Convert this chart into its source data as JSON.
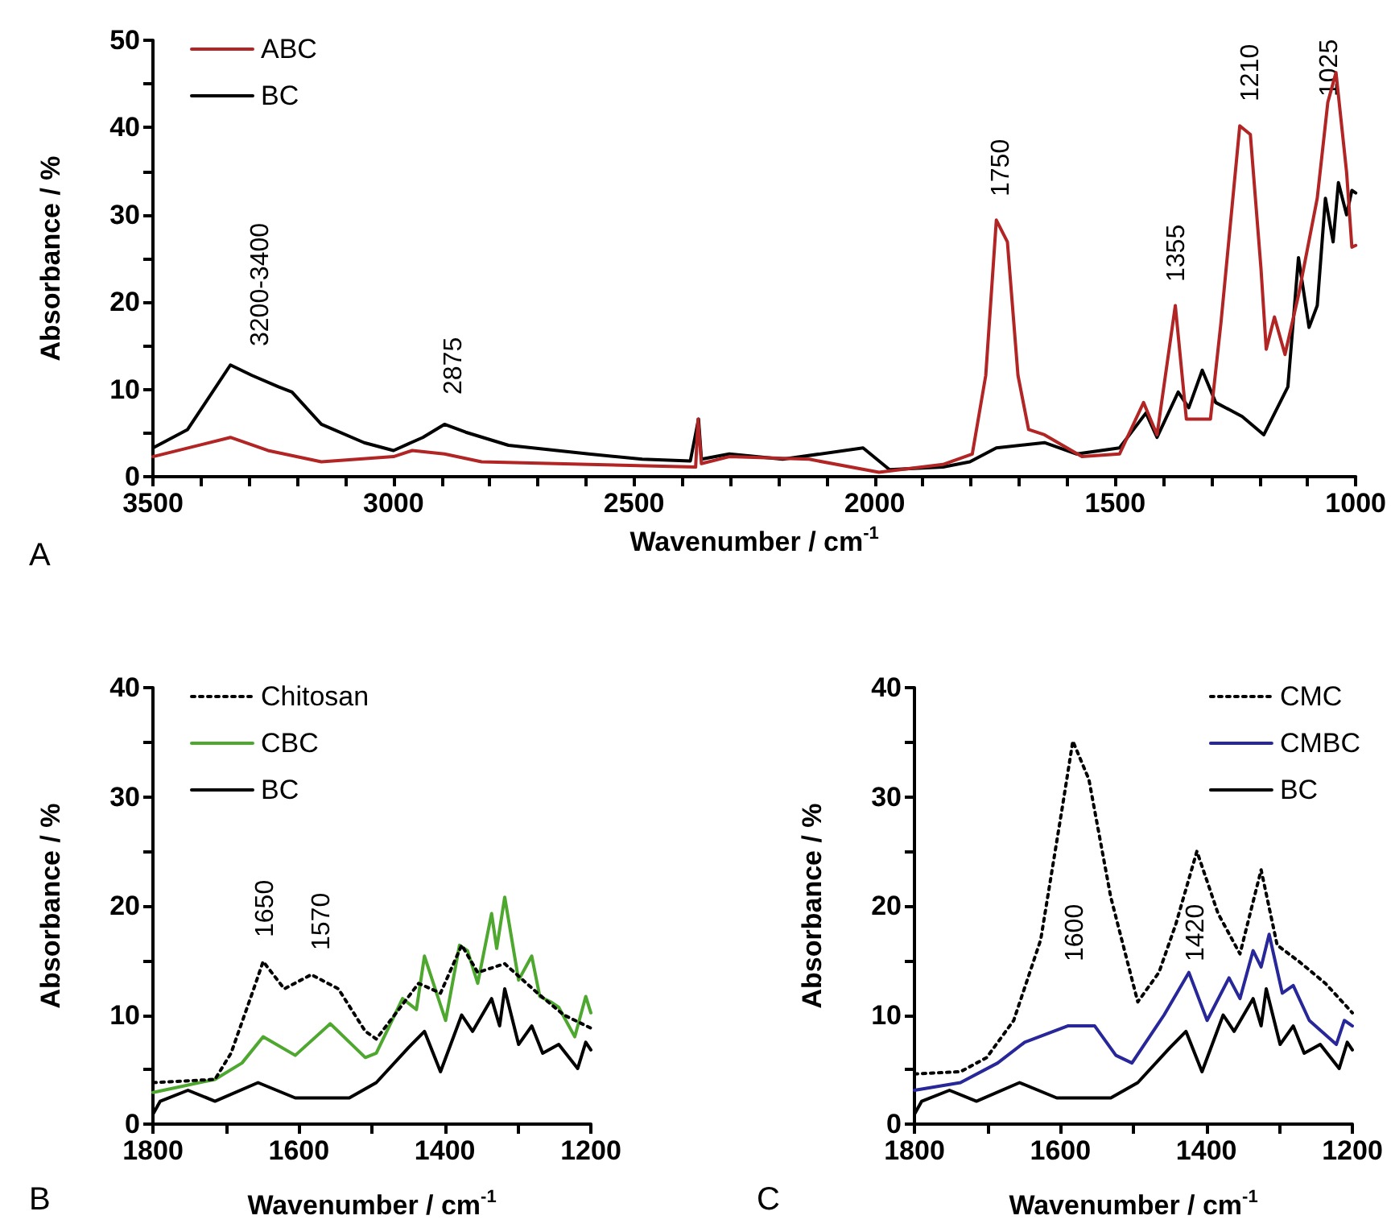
{
  "chart_data": [
    {
      "type": "line",
      "xlabel": "Wavenumber / cm$^{-1}$",
      "ylabel": "Absorbance / %",
      "xlim": [
        3500,
        1000
      ],
      "xticks": [
        3500,
        {
          "value": 3400,
          "label": null
        },
        {
          "value": 3300,
          "label": null
        },
        {
          "value": 3200,
          "label": null
        },
        {
          "value": 3100,
          "label": null
        },
        3000,
        {
          "value": 2900,
          "label": null
        },
        {
          "value": 2800,
          "label": null
        },
        {
          "value": 2700,
          "label": null
        },
        {
          "value": 2600,
          "label": null
        },
        2500,
        {
          "value": 2400,
          "label": null
        },
        {
          "value": 2300,
          "label": null
        },
        {
          "value": 2200,
          "label": null
        },
        {
          "value": 2100,
          "label": null
        },
        2000,
        {
          "value": 1900,
          "label": null
        },
        {
          "value": 1800,
          "label": null
        },
        {
          "value": 1700,
          "label": null
        },
        {
          "value": 1600,
          "label": null
        },
        1500,
        {
          "value": 1400,
          "label": null
        },
        {
          "value": 1300,
          "label": null
        },
        {
          "value": 1200,
          "label": null
        },
        {
          "value": 1100,
          "label": null
        },
        1000
      ],
      "ylim": [
        0,
        50
      ],
      "yticks": [
        0,
        {
          "value": 5,
          "label": null
        },
        10,
        {
          "value": 15,
          "label": null
        },
        20,
        {
          "value": 25,
          "label": null
        },
        30,
        {
          "value": 35,
          "label": null
        },
        40,
        {
          "value": 45,
          "label": null
        },
        50
      ],
      "grid": false,
      "legend": "top left",
      "marker": "none",
      "series": [
        {
          "name": "ABC",
          "color": "#b22525",
          "line_style": "solid",
          "x": [
            3500,
            3339,
            3261,
            3150,
            3000,
            2961,
            2894,
            2817,
            2594,
            2372,
            2367,
            2360,
            2302,
            2136,
            1991,
            1858,
            1797,
            1769,
            1747,
            1724,
            1702,
            1680,
            1647,
            1569,
            1491,
            1441,
            1413,
            1375,
            1352,
            1302,
            1280,
            1241,
            1219,
            1197,
            1186,
            1169,
            1147,
            1119,
            1080,
            1058,
            1041,
            1019,
            1008,
            1000
          ],
          "values": [
            2.3,
            4.5,
            3.0,
            1.7,
            2.3,
            3.0,
            2.6,
            1.7,
            1.4,
            1.1,
            6.6,
            1.5,
            2.3,
            2.0,
            0.5,
            1.4,
            2.6,
            11.6,
            29.4,
            26.9,
            11.6,
            5.4,
            4.8,
            2.3,
            2.6,
            8.5,
            4.8,
            19.6,
            6.6,
            6.6,
            17.7,
            40.2,
            39.2,
            23.9,
            14.6,
            18.3,
            14.0,
            20.8,
            31.9,
            42.9,
            46.3,
            34.9,
            26.3,
            26.5
          ]
        },
        {
          "name": "BC",
          "color": "#000000",
          "line_style": "solid",
          "x": [
            3500,
            3428,
            3339,
            3294,
            3239,
            3211,
            3150,
            3061,
            3000,
            2939,
            2894,
            2850,
            2761,
            2594,
            2483,
            2383,
            2366,
            2360,
            2302,
            2191,
            2024,
            1969,
            1858,
            1802,
            1747,
            1647,
            1580,
            1491,
            1436,
            1413,
            1369,
            1347,
            1319,
            1291,
            1236,
            1191,
            1141,
            1119,
            1097,
            1080,
            1063,
            1047,
            1036,
            1019,
            1008,
            1000
          ],
          "values": [
            3.3,
            5.4,
            12.8,
            11.6,
            10.3,
            9.7,
            6.0,
            3.9,
            3.0,
            4.5,
            6.0,
            5.1,
            3.6,
            2.6,
            2.0,
            1.8,
            6.6,
            2.0,
            2.6,
            2.0,
            3.3,
            0.8,
            1.1,
            1.7,
            3.3,
            3.9,
            2.6,
            3.3,
            7.3,
            4.5,
            9.7,
            7.9,
            12.2,
            8.5,
            6.9,
            4.8,
            10.3,
            25.1,
            17.1,
            19.6,
            31.9,
            26.9,
            33.7,
            30.0,
            32.8,
            32.5
          ]
        }
      ],
      "annotations": [
        "3200-3400",
        "2875",
        "1750",
        "1355",
        "1210",
        "1025",
        "A"
      ]
    },
    {
      "type": "line",
      "xlabel": "Wavenumber / cm$^{-1}$",
      "ylabel": "Absorbance / %",
      "xlim": [
        1800,
        1200
      ],
      "xticks": [
        1800,
        {
          "value": 1700,
          "label": null
        },
        1600,
        {
          "value": 1500,
          "label": null
        },
        1400,
        {
          "value": 1300,
          "label": null
        },
        1200
      ],
      "ylim": [
        0,
        40
      ],
      "yticks": [
        0,
        {
          "value": 5,
          "label": null
        },
        10,
        {
          "value": 15,
          "label": null
        },
        20,
        {
          "value": 25,
          "label": null
        },
        30,
        {
          "value": 35,
          "label": null
        },
        40
      ],
      "grid": false,
      "legend": "top left",
      "marker": "none",
      "series": [
        {
          "name": "Chitosan",
          "color": "#000000",
          "line_style": "dotted",
          "x": [
            1800,
            1715,
            1693,
            1664,
            1649,
            1620,
            1583,
            1546,
            1509,
            1494,
            1436,
            1406,
            1377,
            1355,
            1318,
            1273,
            1237,
            1200
          ],
          "values": [
            3.8,
            4.1,
            6.5,
            12.0,
            14.9,
            12.4,
            13.7,
            12.4,
            8.5,
            7.8,
            12.9,
            12.0,
            16.4,
            13.9,
            14.7,
            12.0,
            10.0,
            8.8
          ]
        },
        {
          "name": "CBC",
          "color": "#4ea72e",
          "line_style": "solid",
          "x": [
            1800,
            1715,
            1678,
            1649,
            1605,
            1557,
            1509,
            1494,
            1458,
            1439,
            1428,
            1399,
            1380,
            1369,
            1355,
            1336,
            1329,
            1318,
            1299,
            1281,
            1270,
            1255,
            1244,
            1222,
            1207,
            1200
          ],
          "values": [
            2.9,
            4.1,
            5.6,
            8.0,
            6.3,
            9.2,
            6.1,
            6.5,
            11.5,
            10.5,
            15.4,
            9.5,
            16.4,
            15.9,
            12.9,
            19.3,
            16.1,
            20.8,
            13.2,
            15.4,
            11.7,
            11.2,
            10.7,
            8.0,
            11.7,
            10.2
          ]
        },
        {
          "name": "BC",
          "color": "#000000",
          "line_style": "solid",
          "x": [
            1800,
            1790,
            1752,
            1715,
            1656,
            1605,
            1531,
            1494,
            1450,
            1428,
            1406,
            1377,
            1362,
            1336,
            1325,
            1318,
            1299,
            1281,
            1266,
            1244,
            1218,
            1207,
            1200
          ],
          "values": [
            0.9,
            2.1,
            3.1,
            2.1,
            3.8,
            2.4,
            2.4,
            3.8,
            7.0,
            8.5,
            4.8,
            10.0,
            8.5,
            11.5,
            9.0,
            12.4,
            7.3,
            9.0,
            6.5,
            7.3,
            5.1,
            7.5,
            6.8
          ]
        }
      ],
      "annotations": [
        "1650",
        "1570",
        "B"
      ]
    },
    {
      "type": "line",
      "xlabel": "Wavenumber / cm$^{-1}$",
      "ylabel": "Absorbance / %",
      "xlim": [
        1800,
        1200
      ],
      "xticks": [
        1800,
        {
          "value": 1700,
          "label": null
        },
        1600,
        {
          "value": 1500,
          "label": null
        },
        1400,
        {
          "value": 1300,
          "label": null
        },
        1200
      ],
      "ylim": [
        0,
        40
      ],
      "yticks": [
        0,
        {
          "value": 5,
          "label": null
        },
        10,
        {
          "value": 15,
          "label": null
        },
        20,
        {
          "value": 25,
          "label": null
        },
        30,
        {
          "value": 35,
          "label": null
        },
        40
      ],
      "grid": false,
      "legend": "top right",
      "marker": "none",
      "series": [
        {
          "name": "CMC",
          "color": "#000000",
          "line_style": "dotted",
          "x": [
            1800,
            1737,
            1701,
            1664,
            1627,
            1597,
            1583,
            1561,
            1531,
            1494,
            1465,
            1442,
            1413,
            1384,
            1354,
            1325,
            1303,
            1273,
            1237,
            1200
          ],
          "values": [
            4.6,
            4.8,
            6.1,
            9.5,
            16.9,
            29.2,
            35.1,
            31.6,
            20.8,
            11.2,
            13.9,
            18.3,
            25.0,
            19.3,
            15.6,
            23.3,
            16.4,
            14.9,
            12.9,
            10.2
          ]
        },
        {
          "name": "CMBC",
          "color": "#27279a",
          "line_style": "solid",
          "x": [
            1800,
            1737,
            1686,
            1649,
            1590,
            1553,
            1524,
            1502,
            1458,
            1424,
            1399,
            1369,
            1354,
            1336,
            1325,
            1314,
            1296,
            1281,
            1259,
            1222,
            1211,
            1200
          ],
          "values": [
            3.1,
            3.8,
            5.6,
            7.5,
            9.0,
            9.0,
            6.3,
            5.6,
            10.0,
            13.9,
            9.5,
            13.4,
            11.5,
            15.9,
            14.4,
            17.4,
            12.0,
            12.7,
            9.5,
            7.3,
            9.5,
            9.0
          ]
        },
        {
          "name": "BC",
          "color": "#000000",
          "line_style": "solid",
          "x": [
            1800,
            1790,
            1752,
            1715,
            1656,
            1605,
            1531,
            1494,
            1450,
            1428,
            1406,
            1377,
            1362,
            1336,
            1325,
            1318,
            1299,
            1281,
            1266,
            1244,
            1218,
            1207,
            1200
          ],
          "values": [
            0.9,
            2.1,
            3.1,
            2.1,
            3.8,
            2.4,
            2.4,
            3.8,
            7.0,
            8.5,
            4.8,
            10.0,
            8.5,
            11.5,
            9.0,
            12.4,
            7.3,
            9.0,
            6.5,
            7.3,
            5.1,
            7.5,
            6.8
          ]
        }
      ],
      "annotations": [
        "1600",
        "1420",
        "C"
      ]
    }
  ]
}
